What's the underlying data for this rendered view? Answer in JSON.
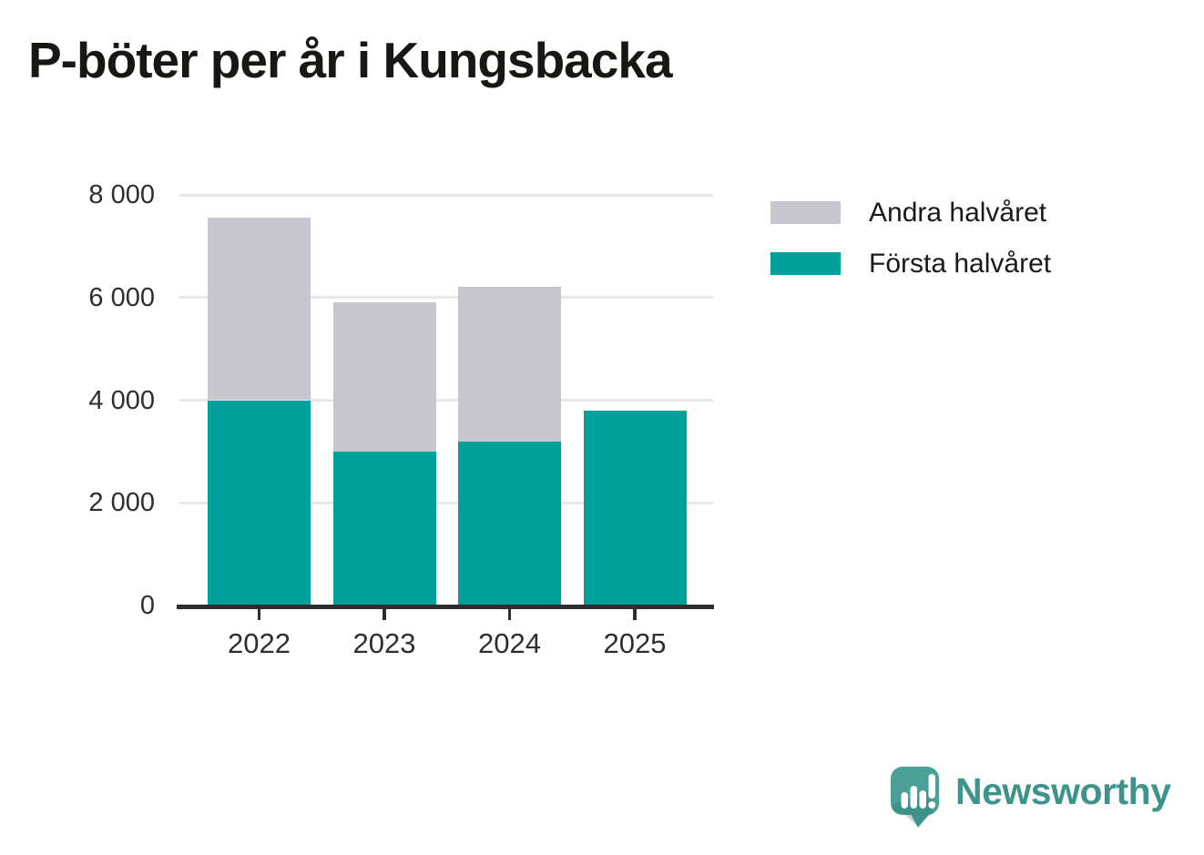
{
  "title": "P-böter per år i Kungsbacka",
  "legend": {
    "items": [
      {
        "label": "Andra halvåret",
        "color": "#c8c6ce"
      },
      {
        "label": "Första halvåret",
        "color": "#00a09a"
      }
    ]
  },
  "chart_data": {
    "type": "bar",
    "stacked": true,
    "title": "P-böter per år i Kungsbacka",
    "categories": [
      "2022",
      "2023",
      "2024",
      "2025"
    ],
    "series": [
      {
        "name": "Första halvåret",
        "color": "#00a09a",
        "values": [
          4000,
          3000,
          3200,
          3800
        ]
      },
      {
        "name": "Andra halvåret",
        "color": "#c8c6ce",
        "values": [
          3550,
          2900,
          3000,
          0
        ]
      }
    ],
    "totals": [
      7550,
      5900,
      6200,
      3800
    ],
    "xlabel": "",
    "ylabel": "",
    "ylim": [
      0,
      8000
    ],
    "yticks": [
      {
        "value": 0,
        "label": "0"
      },
      {
        "value": 2000,
        "label": "2 000"
      },
      {
        "value": 4000,
        "label": "4 000"
      },
      {
        "value": 6000,
        "label": "6 000"
      },
      {
        "value": 8000,
        "label": "8 000"
      }
    ],
    "grid": true,
    "legend_position": "top-right"
  },
  "branding": {
    "wordmark": "Newsworthy"
  },
  "colors": {
    "first_half": "#00a09a",
    "second_half": "#c8c6ce",
    "grid": "#e8e6ea",
    "axis": "#2e2e2e",
    "title_text": "#171714",
    "brand_teal": "#4aa096",
    "brand_text": "#3e948a",
    "background": "#ffffff"
  }
}
